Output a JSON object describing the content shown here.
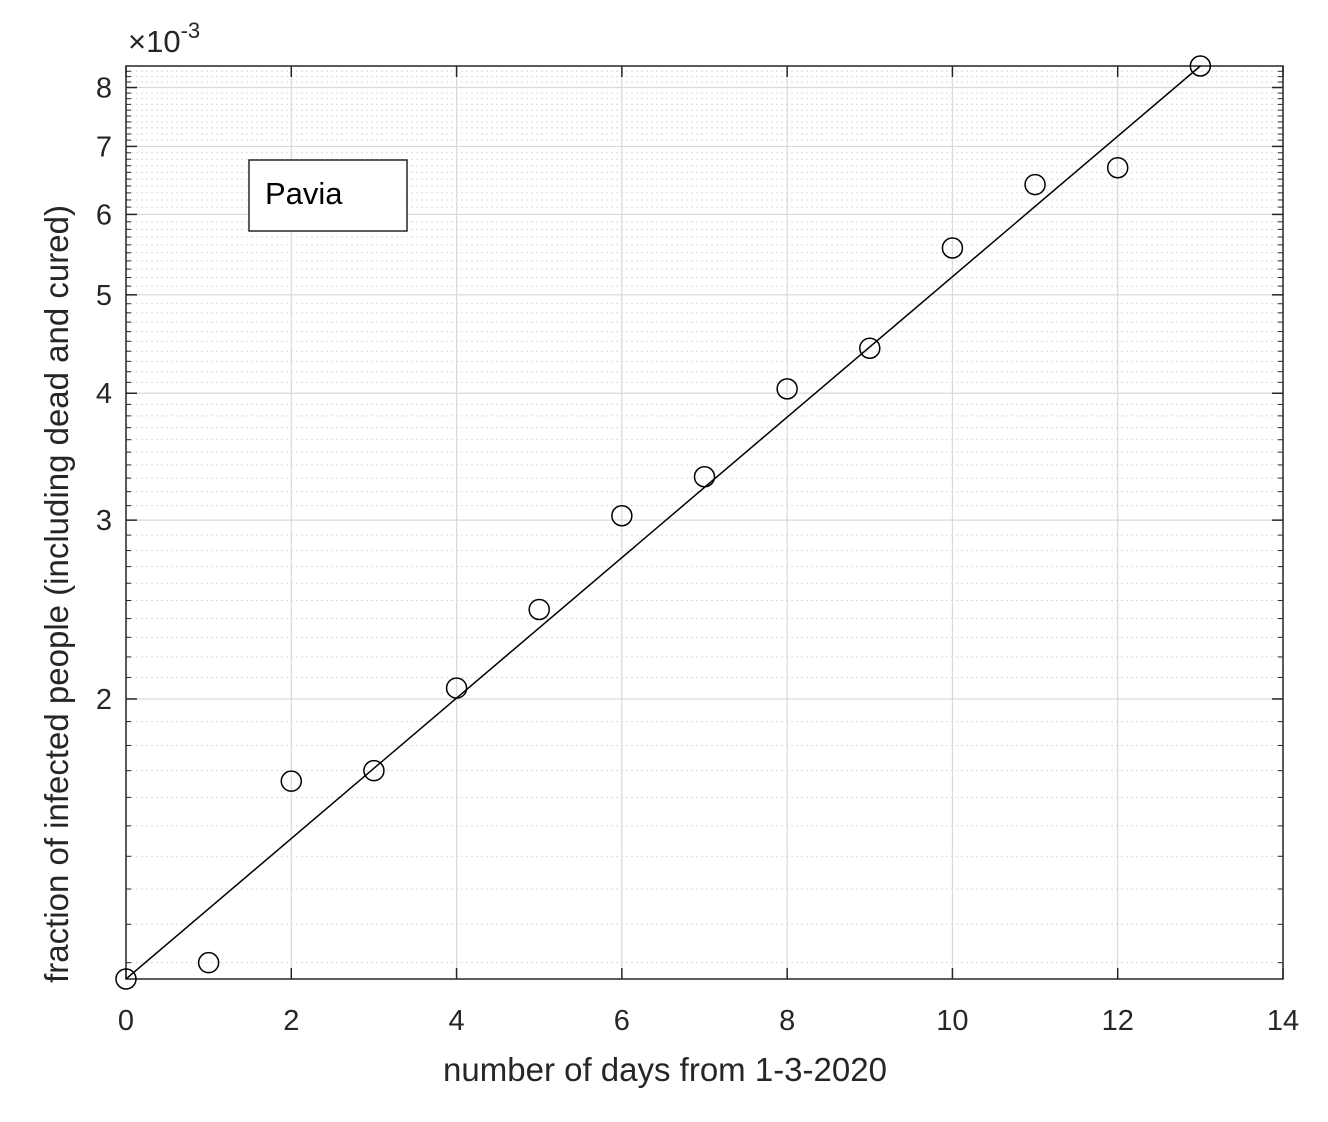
{
  "chart_data": {
    "type": "scatter",
    "title": "",
    "xlabel": "number of days from 1-3-2020",
    "ylabel": "fraction of infected people (including dead and cured)",
    "y_scale": "log",
    "y_multiplier": "×10-3",
    "y_multiplier_parts": {
      "base": "×10",
      "exponent": "-3"
    },
    "xlim": [
      0,
      14
    ],
    "ylim": [
      1.06,
      8.4
    ],
    "x_ticks": [
      0,
      2,
      4,
      6,
      8,
      10,
      12,
      14
    ],
    "y_ticks": [
      2,
      3,
      4,
      5,
      6,
      7,
      8
    ],
    "grid": true,
    "minor_grid": true,
    "annotation": "Pavia",
    "series": [
      {
        "marker": "circle",
        "x": [
          0,
          1,
          2,
          3,
          4,
          5,
          6,
          7,
          8,
          9,
          10,
          11,
          12,
          13
        ],
        "y": [
          1.06,
          1.1,
          1.66,
          1.7,
          2.05,
          2.45,
          3.03,
          3.31,
          4.04,
          4.43,
          5.56,
          6.42,
          6.67,
          8.4
        ]
      },
      {
        "line": "fit",
        "x": [
          0,
          13
        ],
        "y": [
          1.06,
          8.4
        ]
      }
    ],
    "colors": {
      "marker": "#000000",
      "fit_line": "#000000",
      "grid": "#d9d9d9",
      "axes": "#262626"
    }
  }
}
